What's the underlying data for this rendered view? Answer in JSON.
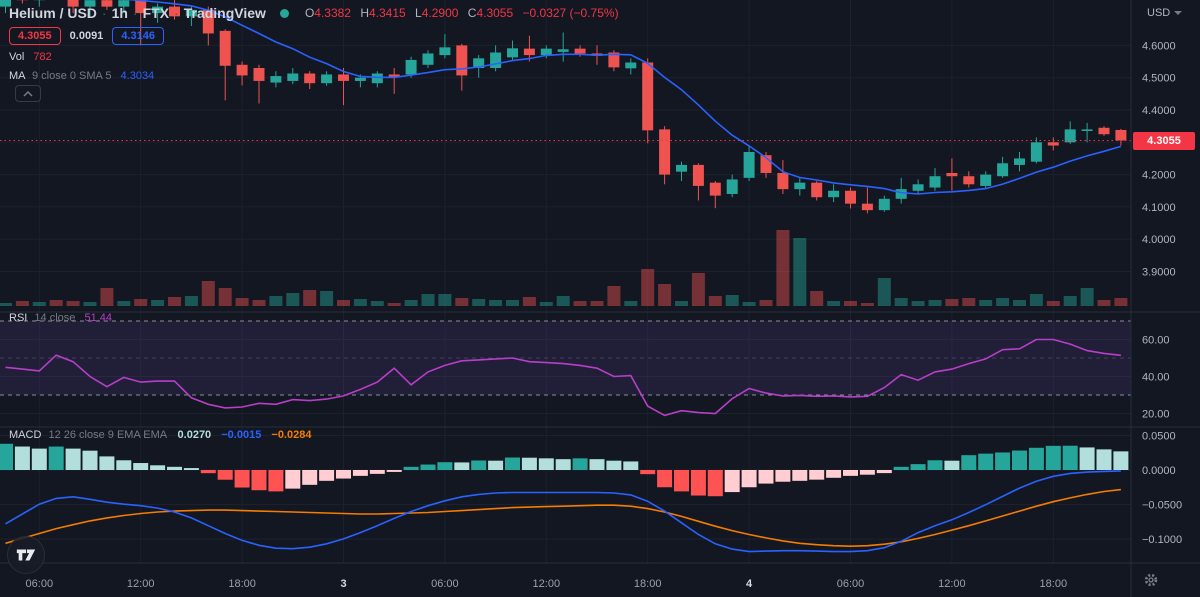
{
  "header": {
    "symbol": "Helium / USD",
    "interval": "1h",
    "exchange": "FTX",
    "platform": "TradingView",
    "separator": "·",
    "ohlc": {
      "o_label": "O",
      "o": "4.3382",
      "h_label": "H",
      "h": "4.3415",
      "l_label": "L",
      "l": "4.2900",
      "c_label": "C",
      "c": "4.3055",
      "change": "−0.0327 (−0.75%)"
    },
    "badges": {
      "sell": "4.3055",
      "spread": "0.0091",
      "buy": "4.3146"
    },
    "volume": {
      "label": "Vol",
      "value": "782"
    },
    "ma": {
      "name": "MA",
      "params": "9 close 0 SMA 5",
      "value": "4.3034"
    }
  },
  "panels": {
    "rsi": {
      "name": "RSI",
      "params": "14 close",
      "value": "51.44"
    },
    "macd": {
      "name": "MACD",
      "params": "12 26 close 9 EMA EMA",
      "hist_value": "0.0270",
      "macd_value": "−0.0015",
      "signal_value": "−0.0284"
    }
  },
  "axis": {
    "currency_label": "USD",
    "current_price_label": "4.3055",
    "price_ticks": [
      {
        "label": "4.6000",
        "value": 4.6
      },
      {
        "label": "4.5000",
        "value": 4.5
      },
      {
        "label": "4.4000",
        "value": 4.4
      },
      {
        "label": "4.2000",
        "value": 4.2
      },
      {
        "label": "4.1000",
        "value": 4.1
      },
      {
        "label": "4.0000",
        "value": 4.0
      },
      {
        "label": "3.9000",
        "value": 3.9
      }
    ],
    "rsi_ticks": [
      {
        "label": "60.00",
        "value": 60
      },
      {
        "label": "40.00",
        "value": 40
      },
      {
        "label": "20.00",
        "value": 20
      }
    ],
    "macd_ticks": [
      {
        "label": "0.0500",
        "value": 0.05
      },
      {
        "label": "0.0000",
        "value": 0.0
      },
      {
        "label": "−0.0500",
        "value": -0.05
      },
      {
        "label": "−0.1000",
        "value": -0.1
      }
    ],
    "time_ticks": [
      {
        "label": "06:00",
        "index": 2,
        "major": false
      },
      {
        "label": "12:00",
        "index": 8,
        "major": false
      },
      {
        "label": "18:00",
        "index": 14,
        "major": false
      },
      {
        "label": "3",
        "index": 20,
        "major": true
      },
      {
        "label": "06:00",
        "index": 26,
        "major": false
      },
      {
        "label": "12:00",
        "index": 32,
        "major": false
      },
      {
        "label": "18:00",
        "index": 38,
        "major": false
      },
      {
        "label": "4",
        "index": 44,
        "major": true
      },
      {
        "label": "06:00",
        "index": 50,
        "major": false
      },
      {
        "label": "12:00",
        "index": 56,
        "major": false
      },
      {
        "label": "18:00",
        "index": 62,
        "major": false
      }
    ]
  },
  "colors": {
    "bg": "#131722",
    "grid": "#1d212e",
    "separator": "#2a2e39",
    "up": "#26a69a",
    "down": "#ef5350",
    "accent_red": "#f23645",
    "ma_blue": "#2962ff",
    "macd_blue": "#2962ff",
    "signal_orange": "#f57c00",
    "rsi_purple": "#b73fc8",
    "rsi_band": "rgba(135,77,210,0.13)",
    "rsi_level_line": "#8b8f9b",
    "rsi_mid_line": "#62667280",
    "hist_up": "#26a69a",
    "hist_up_weak": "#b2dfdb",
    "hist_down": "#ff5252",
    "hist_down_weak": "#ffcdd2",
    "status_dot": "#26a69a"
  },
  "chart_data": {
    "type": "candlestick+indicators",
    "title": "Helium / USD 1h (FTX)",
    "interval": "1h",
    "current_price": 4.3055,
    "price_range_visible": [
      3.9,
      4.6
    ],
    "rsi_levels": [
      70,
      50,
      30
    ],
    "candles_ohlcv": [
      [
        4.72,
        4.78,
        4.7,
        4.76,
        3
      ],
      [
        4.76,
        4.8,
        4.73,
        4.74,
        5
      ],
      [
        4.74,
        4.78,
        4.72,
        4.77,
        4
      ],
      [
        4.77,
        4.8,
        4.75,
        4.76,
        6
      ],
      [
        4.76,
        4.78,
        4.7,
        4.72,
        5
      ],
      [
        4.72,
        4.76,
        4.69,
        4.74,
        4
      ],
      [
        4.74,
        4.77,
        4.71,
        4.72,
        18
      ],
      [
        4.72,
        4.75,
        4.7,
        4.74,
        5
      ],
      [
        4.74,
        4.75,
        4.6,
        4.7,
        7
      ],
      [
        4.7,
        4.73,
        4.67,
        4.72,
        6
      ],
      [
        4.72,
        4.74,
        4.68,
        4.69,
        9
      ],
      [
        4.69,
        4.72,
        4.66,
        4.71,
        10
      ],
      [
        4.71,
        4.72,
        4.6,
        4.637,
        25
      ],
      [
        4.645,
        4.65,
        4.43,
        4.537,
        18
      ],
      [
        4.54,
        4.55,
        4.476,
        4.507,
        8
      ],
      [
        4.53,
        4.54,
        4.42,
        4.49,
        6
      ],
      [
        4.485,
        4.52,
        4.47,
        4.505,
        10
      ],
      [
        4.49,
        4.53,
        4.48,
        4.513,
        13
      ],
      [
        4.513,
        4.52,
        4.465,
        4.483,
        16
      ],
      [
        4.483,
        4.52,
        4.475,
        4.51,
        15
      ],
      [
        4.51,
        4.53,
        4.415,
        4.49,
        6
      ],
      [
        4.49,
        4.51,
        4.47,
        4.5,
        7
      ],
      [
        4.483,
        4.52,
        4.47,
        4.513,
        5
      ],
      [
        4.51,
        4.53,
        4.45,
        4.503,
        3
      ],
      [
        4.51,
        4.565,
        4.5,
        4.555,
        6
      ],
      [
        4.54,
        4.585,
        4.53,
        4.575,
        12
      ],
      [
        4.57,
        4.635,
        4.56,
        4.594,
        12
      ],
      [
        4.6,
        4.605,
        4.46,
        4.507,
        8
      ],
      [
        4.53,
        4.57,
        4.5,
        4.56,
        7
      ],
      [
        4.53,
        4.6,
        4.52,
        4.578,
        6
      ],
      [
        4.563,
        4.615,
        4.555,
        4.591,
        6
      ],
      [
        4.59,
        4.63,
        4.55,
        4.57,
        9
      ],
      [
        4.57,
        4.6,
        4.56,
        4.59,
        4
      ],
      [
        4.58,
        4.64,
        4.55,
        4.588,
        10
      ],
      [
        4.59,
        4.6,
        4.565,
        4.575,
        5
      ],
      [
        4.575,
        4.6,
        4.54,
        4.568,
        5
      ],
      [
        4.578,
        4.585,
        4.52,
        4.532,
        20
      ],
      [
        4.529,
        4.56,
        4.51,
        4.547,
        5
      ],
      [
        4.547,
        4.56,
        4.297,
        4.337,
        37
      ],
      [
        4.34,
        4.35,
        4.17,
        4.2,
        22
      ],
      [
        4.209,
        4.24,
        4.18,
        4.23,
        5
      ],
      [
        4.23,
        4.235,
        4.12,
        4.165,
        33
      ],
      [
        4.175,
        4.18,
        4.096,
        4.135,
        10
      ],
      [
        4.14,
        4.2,
        4.13,
        4.185,
        11
      ],
      [
        4.19,
        4.29,
        4.18,
        4.27,
        4
      ],
      [
        4.26,
        4.27,
        4.19,
        4.205,
        6
      ],
      [
        4.205,
        4.245,
        4.14,
        4.155,
        76
      ],
      [
        4.155,
        4.19,
        4.135,
        4.175,
        68
      ],
      [
        4.175,
        4.18,
        4.12,
        4.13,
        15
      ],
      [
        4.13,
        4.17,
        4.115,
        4.15,
        5
      ],
      [
        4.15,
        4.16,
        4.095,
        4.11,
        5
      ],
      [
        4.11,
        4.16,
        4.08,
        4.09,
        3
      ],
      [
        4.09,
        4.135,
        4.085,
        4.125,
        28
      ],
      [
        4.125,
        4.19,
        4.11,
        4.155,
        8
      ],
      [
        4.15,
        4.185,
        4.14,
        4.17,
        5
      ],
      [
        4.16,
        4.22,
        4.15,
        4.195,
        6
      ],
      [
        4.205,
        4.25,
        4.15,
        4.195,
        7
      ],
      [
        4.195,
        4.21,
        4.16,
        4.17,
        8
      ],
      [
        4.165,
        4.21,
        4.155,
        4.2,
        6
      ],
      [
        4.195,
        4.255,
        4.19,
        4.235,
        8
      ],
      [
        4.23,
        4.27,
        4.21,
        4.25,
        6
      ],
      [
        4.24,
        4.315,
        4.235,
        4.3,
        12
      ],
      [
        4.3,
        4.315,
        4.275,
        4.29,
        5
      ],
      [
        4.3,
        4.365,
        4.295,
        4.34,
        10
      ],
      [
        4.335,
        4.36,
        4.3,
        4.34,
        18
      ],
      [
        4.345,
        4.35,
        4.32,
        4.325,
        6
      ],
      [
        4.3382,
        4.3415,
        4.29,
        4.3055,
        8
      ]
    ],
    "rsi": [
      45,
      44,
      43,
      51.5,
      48,
      40,
      34.5,
      39.5,
      37,
      37.5,
      37.5,
      28.5,
      25,
      23,
      23.5,
      25.5,
      25,
      27.5,
      27,
      27.8,
      29.5,
      33,
      37,
      44.5,
      35.5,
      42.5,
      46,
      48.5,
      49,
      49.5,
      50,
      48,
      47.5,
      47,
      46,
      44.5,
      40,
      40.5,
      24,
      19,
      21.5,
      20.5,
      20,
      28,
      33.5,
      31,
      29.5,
      29.8,
      29.3,
      29.5,
      29,
      29.3,
      34,
      41,
      38,
      42.5,
      44,
      47,
      49.5,
      54.5,
      55,
      60,
      60,
      57.5,
      54,
      52.5,
      51.44
    ],
    "macd_hist": [
      0.038,
      0.034,
      0.031,
      0.034,
      0.031,
      0.028,
      0.0197,
      0.0141,
      0.0101,
      0.0068,
      0.0046,
      0.0028,
      -0.0046,
      -0.0141,
      -0.0254,
      -0.0293,
      -0.031,
      -0.027,
      -0.0215,
      -0.0157,
      -0.0124,
      -0.0085,
      -0.0056,
      -0.0028,
      0.0046,
      0.0079,
      0.0113,
      0.011,
      0.0138,
      0.0135,
      0.0181,
      0.0178,
      0.0169,
      0.0157,
      0.0169,
      0.0157,
      0.0135,
      0.0124,
      -0.006,
      -0.025,
      -0.031,
      -0.037,
      -0.038,
      -0.032,
      -0.025,
      -0.0197,
      -0.017,
      -0.0157,
      -0.014,
      -0.0113,
      -0.0085,
      -0.0068,
      -0.0045,
      0.0046,
      0.0085,
      0.0141,
      0.0135,
      0.0215,
      0.0237,
      0.0254,
      0.0282,
      0.0322,
      0.035,
      0.0352,
      0.0327,
      0.0299,
      0.027
    ],
    "macd_line": [
      -0.0779,
      -0.0637,
      -0.0496,
      -0.0411,
      -0.0389,
      -0.0425,
      -0.0467,
      -0.0496,
      -0.0517,
      -0.0552,
      -0.0609,
      -0.0694,
      -0.0807,
      -0.0921,
      -0.102,
      -0.1091,
      -0.1133,
      -0.114,
      -0.1119,
      -0.1069,
      -0.0999,
      -0.0907,
      -0.0807,
      -0.0701,
      -0.0602,
      -0.0517,
      -0.0446,
      -0.0389,
      -0.0354,
      -0.0333,
      -0.0326,
      -0.0326,
      -0.0326,
      -0.0326,
      -0.0326,
      -0.0326,
      -0.0333,
      -0.0361,
      -0.0453,
      -0.0595,
      -0.0765,
      -0.0935,
      -0.1069,
      -0.1147,
      -0.1183,
      -0.1176,
      -0.1169,
      -0.1169,
      -0.1176,
      -0.1183,
      -0.1183,
      -0.1169,
      -0.1126,
      -0.1034,
      -0.0907,
      -0.0807,
      -0.0722,
      -0.0616,
      -0.0503,
      -0.0382,
      -0.0262,
      -0.0163,
      -0.0092,
      -0.005,
      -0.003,
      -0.002,
      -0.0015
    ],
    "signal_line": [
      -0.1062,
      -0.0992,
      -0.0921,
      -0.085,
      -0.0793,
      -0.0737,
      -0.0694,
      -0.0659,
      -0.063,
      -0.0609,
      -0.0595,
      -0.0588,
      -0.0581,
      -0.0581,
      -0.0588,
      -0.0595,
      -0.0602,
      -0.0609,
      -0.0616,
      -0.0623,
      -0.063,
      -0.0637,
      -0.0637,
      -0.063,
      -0.0623,
      -0.0616,
      -0.0602,
      -0.0588,
      -0.0574,
      -0.056,
      -0.0545,
      -0.0538,
      -0.0531,
      -0.0524,
      -0.0517,
      -0.051,
      -0.051,
      -0.0524,
      -0.056,
      -0.0609,
      -0.0673,
      -0.0744,
      -0.0814,
      -0.0878,
      -0.0935,
      -0.0984,
      -0.1027,
      -0.1062,
      -0.1083,
      -0.1097,
      -0.1105,
      -0.1097,
      -0.1076,
      -0.1041,
      -0.0991,
      -0.0935,
      -0.0871,
      -0.0807,
      -0.0737,
      -0.0666,
      -0.0595,
      -0.0524,
      -0.046,
      -0.0404,
      -0.0354,
      -0.0312,
      -0.0284
    ]
  }
}
